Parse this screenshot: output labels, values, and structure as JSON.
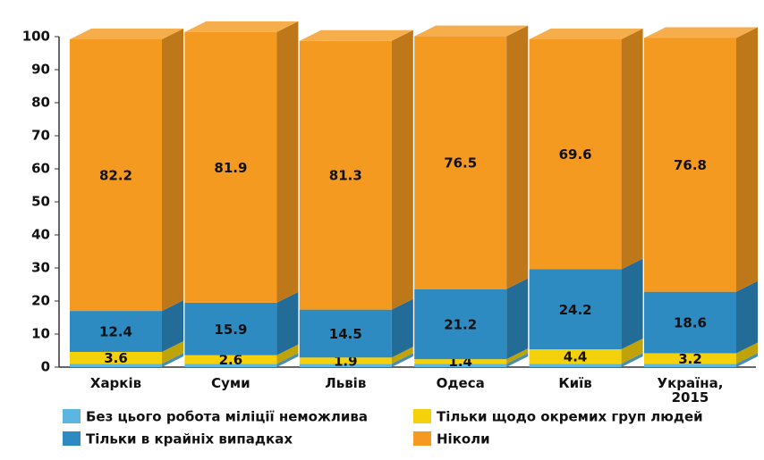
{
  "chart_data": {
    "type": "bar",
    "stacked": true,
    "categories": [
      "Харків",
      "Суми",
      "Львів",
      "Одеса",
      "Київ",
      "Україна, 2015"
    ],
    "series": [
      {
        "name": "Без цього робота міліції неможлива",
        "color": "#5cb6e0",
        "labels": false,
        "values": [
          1,
          1,
          1,
          1,
          1,
          1
        ]
      },
      {
        "name": "Тільки щодо окремих груп людей",
        "color": "#f5d10c",
        "labels": true,
        "values": [
          3.6,
          2.6,
          1.9,
          1.4,
          4.4,
          3.2
        ]
      },
      {
        "name": "Тільки в крайніх випадках",
        "color": "#2d8bc2",
        "labels": true,
        "values": [
          12.4,
          15.9,
          14.5,
          21.2,
          24.2,
          18.6
        ]
      },
      {
        "name": "Ніколи",
        "color": "#f49a20",
        "labels": true,
        "values": [
          82.2,
          81.9,
          81.3,
          76.5,
          69.6,
          76.8
        ]
      }
    ],
    "ylim": [
      0,
      100
    ],
    "yticks": [
      0,
      10,
      20,
      30,
      40,
      50,
      60,
      70,
      80,
      90,
      100
    ],
    "legend": "bottom"
  }
}
